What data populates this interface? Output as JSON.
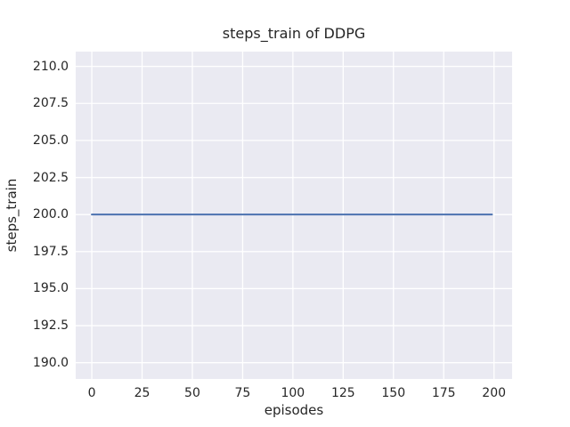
{
  "figure": {
    "title": "steps_train of DDPG",
    "xlabel": "episodes",
    "ylabel": "steps_train"
  },
  "chart_data": {
    "type": "line",
    "title": "steps_train of DDPG",
    "xlabel": "episodes",
    "ylabel": "steps_train",
    "x_ticks": [
      0,
      25,
      50,
      75,
      100,
      125,
      150,
      175,
      200
    ],
    "y_ticks": [
      "210.0",
      "207.5",
      "205.0",
      "202.5",
      "200.0",
      "197.5",
      "195.0",
      "192.5",
      "190.0"
    ],
    "y_tick_values": [
      210.0,
      207.5,
      205.0,
      202.5,
      200.0,
      197.5,
      195.0,
      192.5,
      190.0
    ],
    "xlim": [
      -8,
      209
    ],
    "ylim": [
      188.9,
      211.0
    ],
    "grid": true,
    "legend": false,
    "series": [
      {
        "name": "steps_train",
        "color": "#4c72b0",
        "x": [
          0,
          199
        ],
        "y": [
          200,
          200
        ]
      }
    ],
    "style": {
      "plot_bg": "#eaeaf2",
      "grid_color": "#ffffff",
      "text_color": "#262626",
      "fig_bg": "#ffffff",
      "line_width": 2,
      "grid_width": 1.3
    }
  }
}
